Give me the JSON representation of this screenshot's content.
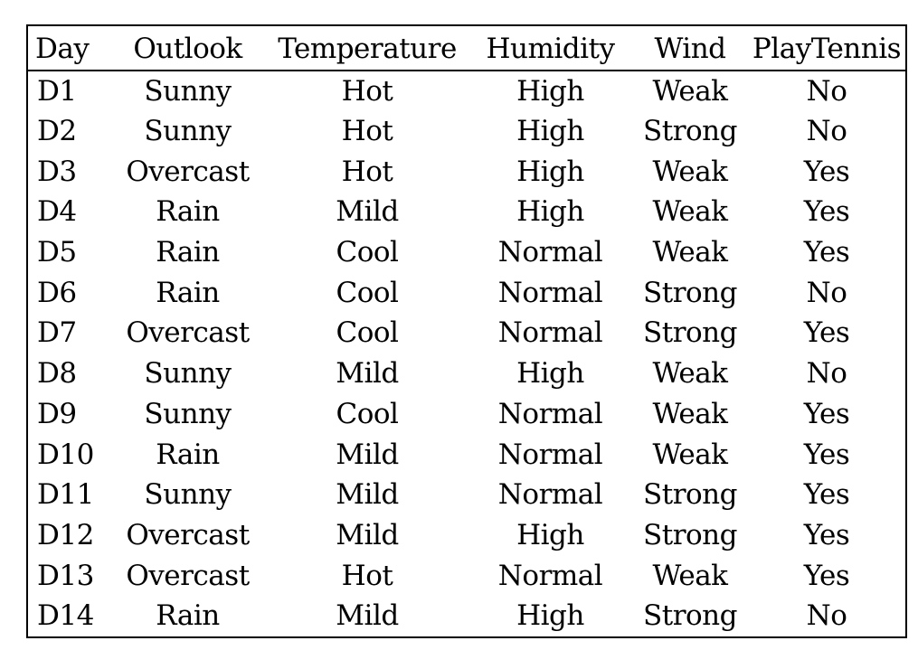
{
  "table": {
    "columns": [
      "Day",
      "Outlook",
      "Temperature",
      "Humidity",
      "Wind",
      "PlayTennis"
    ],
    "rows": [
      [
        "D1",
        "Sunny",
        "Hot",
        "High",
        "Weak",
        "No"
      ],
      [
        "D2",
        "Sunny",
        "Hot",
        "High",
        "Strong",
        "No"
      ],
      [
        "D3",
        "Overcast",
        "Hot",
        "High",
        "Weak",
        "Yes"
      ],
      [
        "D4",
        "Rain",
        "Mild",
        "High",
        "Weak",
        "Yes"
      ],
      [
        "D5",
        "Rain",
        "Cool",
        "Normal",
        "Weak",
        "Yes"
      ],
      [
        "D6",
        "Rain",
        "Cool",
        "Normal",
        "Strong",
        "No"
      ],
      [
        "D7",
        "Overcast",
        "Cool",
        "Normal",
        "Strong",
        "Yes"
      ],
      [
        "D8",
        "Sunny",
        "Mild",
        "High",
        "Weak",
        "No"
      ],
      [
        "D9",
        "Sunny",
        "Cool",
        "Normal",
        "Weak",
        "Yes"
      ],
      [
        "D10",
        "Rain",
        "Mild",
        "Normal",
        "Weak",
        "Yes"
      ],
      [
        "D11",
        "Sunny",
        "Mild",
        "Normal",
        "Strong",
        "Yes"
      ],
      [
        "D12",
        "Overcast",
        "Mild",
        "High",
        "Strong",
        "Yes"
      ],
      [
        "D13",
        "Overcast",
        "Hot",
        "Normal",
        "Weak",
        "Yes"
      ],
      [
        "D14",
        "Rain",
        "Mild",
        "High",
        "Strong",
        "No"
      ]
    ]
  }
}
